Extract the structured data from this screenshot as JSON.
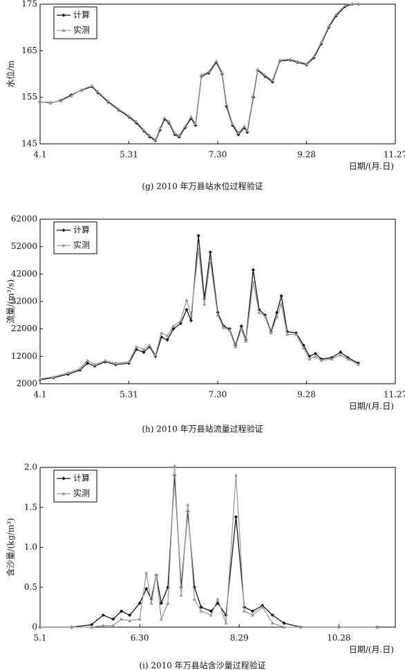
{
  "chart_data": [
    {
      "type": "line",
      "caption": "(g) 2010 年万县站水位过程验证",
      "xlabel": "日期/(月.日)",
      "ylabel": "水位/m",
      "x": [
        "4.1",
        "4.8",
        "4.15",
        "4.22",
        "4.29",
        "5.6",
        "5.10",
        "5.17",
        "5.24",
        "5.31",
        "6.5",
        "6.10",
        "6.14",
        "6.18",
        "6.21",
        "6.24",
        "6.27",
        "7.1",
        "7.4",
        "7.8",
        "7.12",
        "7.15",
        "7.19",
        "7.24",
        "7.29",
        "8.2",
        "8.5",
        "8.9",
        "8.13",
        "8.17",
        "8.19",
        "8.23",
        "8.26",
        "8.31",
        "9.5",
        "9.10",
        "9.17",
        "9.22",
        "9.28",
        "10.3",
        "10.8",
        "10.13",
        "10.18",
        "10.24",
        "10.29",
        "11.2"
      ],
      "xlim": [
        "4.1",
        "11.27"
      ],
      "xticks": [
        "4.1",
        "5.31",
        "7.30",
        "9.28",
        "11.27"
      ],
      "ylim": [
        145,
        175
      ],
      "yticks": [
        145,
        155,
        165,
        175
      ],
      "legend": "upper left",
      "series": [
        {
          "name": "计算",
          "color": "#111111",
          "marker": "diamond",
          "values": [
            154,
            153.8,
            154.3,
            155.5,
            156.5,
            157.3,
            156,
            154,
            152.3,
            150.8,
            149.5,
            147.8,
            146.5,
            145.7,
            148,
            150.3,
            149.5,
            147,
            146.5,
            148.5,
            150.5,
            149,
            159.5,
            160.2,
            162.5,
            160,
            153,
            149,
            147,
            148.5,
            147.5,
            155,
            160.8,
            159.5,
            158.3,
            162.8,
            163,
            162.5,
            162,
            163.5,
            166.5,
            170,
            172.5,
            174.5,
            175,
            175
          ]
        },
        {
          "name": "实测",
          "color": "#999999",
          "marker": "triangle",
          "values": [
            154,
            153.9,
            154.2,
            155.3,
            156.6,
            157.5,
            156.2,
            154.2,
            152.5,
            151,
            149.8,
            148,
            146.8,
            145.9,
            148.3,
            150.6,
            149.8,
            147.3,
            146.8,
            148.8,
            150.8,
            149.3,
            159.8,
            160.5,
            162.8,
            160.3,
            153.5,
            149.3,
            147.4,
            148.8,
            147.8,
            155.4,
            161,
            159.8,
            158.6,
            163,
            163.2,
            162.7,
            162.2,
            163.8,
            166.8,
            170.3,
            172.8,
            174.7,
            175.1,
            175.1
          ]
        }
      ]
    },
    {
      "type": "line",
      "caption": "(h) 2010 年万县站流量过程验证",
      "xlabel": "日期/(月.日)",
      "ylabel": "流量/(m³/s)",
      "x": [
        "4.1",
        "4.10",
        "4.20",
        "4.28",
        "5.3",
        "5.8",
        "5.15",
        "5.22",
        "5.31",
        "6.5",
        "6.10",
        "6.14",
        "6.18",
        "6.22",
        "6.26",
        "6.30",
        "7.5",
        "7.9",
        "7.12",
        "7.17",
        "7.21",
        "7.25",
        "7.30",
        "8.3",
        "8.7",
        "8.11",
        "8.15",
        "8.18",
        "8.23",
        "8.27",
        "8.31",
        "9.4",
        "9.8",
        "9.11",
        "9.15",
        "9.21",
        "9.26",
        "9.30",
        "10.4",
        "10.8",
        "10.15",
        "10.21",
        "10.26",
        "11.2"
      ],
      "xlim": [
        "4.1",
        "11.27"
      ],
      "xticks": [
        "4.1",
        "5.31",
        "7.30",
        "9.28",
        "11.27"
      ],
      "ylim": [
        2000,
        62000
      ],
      "yticks": [
        2000,
        12000,
        22000,
        32000,
        42000,
        52000,
        62000
      ],
      "legend": "upper left",
      "series": [
        {
          "name": "计算",
          "color": "#111111",
          "marker": "diamond",
          "values": [
            3500,
            4200,
            5500,
            7000,
            9500,
            8500,
            10000,
            9000,
            9500,
            14500,
            13500,
            15500,
            12000,
            19000,
            18000,
            22000,
            24000,
            29000,
            25000,
            56000,
            33000,
            50000,
            28000,
            23000,
            22000,
            16000,
            23000,
            18000,
            43500,
            29000,
            27000,
            21000,
            28000,
            34000,
            21000,
            20500,
            16000,
            12000,
            13000,
            11000,
            11500,
            13500,
            11500,
            9500
          ]
        },
        {
          "name": "实测",
          "color": "#999999",
          "marker": "triangle",
          "values": [
            3800,
            4500,
            6000,
            7500,
            10500,
            9000,
            10500,
            9500,
            10000,
            15500,
            14500,
            16000,
            12500,
            20500,
            19500,
            23000,
            25000,
            32500,
            27000,
            51000,
            31000,
            47000,
            27000,
            22500,
            21500,
            15500,
            22000,
            17500,
            39000,
            28000,
            26500,
            20500,
            26500,
            31000,
            20000,
            20000,
            15000,
            11000,
            12000,
            10500,
            11000,
            12500,
            11000,
            9000
          ]
        }
      ]
    },
    {
      "type": "line",
      "caption": "(i) 2010 年万县站含沙量过程验证",
      "xlabel": "日期/(月.日)",
      "ylabel": "含沙量/(kg/m³)",
      "x": [
        "5.1",
        "5.20",
        "6.1",
        "6.8",
        "6.14",
        "6.19",
        "6.24",
        "6.30",
        "7.4",
        "7.7",
        "7.10",
        "7.13",
        "7.17",
        "7.21",
        "7.25",
        "7.29",
        "8.2",
        "8.6",
        "8.12",
        "8.16",
        "8.21",
        "8.27",
        "9.1",
        "9.6",
        "9.12",
        "9.18",
        "9.25",
        "10.5",
        "10.28",
        "11.20"
      ],
      "xlim": [
        "5.1",
        "12.1"
      ],
      "xticks": [
        "5.1",
        "6.30",
        "8.29",
        "10.28"
      ],
      "ylim": [
        0,
        2.0
      ],
      "yticks": [
        0,
        0.5,
        {
          "value": 1,
          "label": "1.0"
        },
        1.5,
        {
          "value": 2,
          "label": "2.0"
        }
      ],
      "legend": "upper left",
      "series": [
        {
          "name": "计算",
          "color": "#111111",
          "marker": "diamond",
          "values": [
            0,
            0,
            0.03,
            0.15,
            0.1,
            0.2,
            0.15,
            0.3,
            0.48,
            0.35,
            0.65,
            0.3,
            0.5,
            1.9,
            0.5,
            1.45,
            0.5,
            0.25,
            0.2,
            0.3,
            0.15,
            1.38,
            0.25,
            0.2,
            0.27,
            0.15,
            0.05,
            0,
            0,
            0
          ]
        },
        {
          "name": "实测",
          "color": "#999999",
          "marker": "triangle",
          "values": [
            0,
            0,
            0,
            0.02,
            0.02,
            0.1,
            0.08,
            0.1,
            0.68,
            0.3,
            0.65,
            0.1,
            0.3,
            2.02,
            0.4,
            1.53,
            0.35,
            0.2,
            0.15,
            0.35,
            0.05,
            1.9,
            0.2,
            0.15,
            0.25,
            0.05,
            0,
            0,
            0,
            0
          ]
        }
      ]
    }
  ]
}
